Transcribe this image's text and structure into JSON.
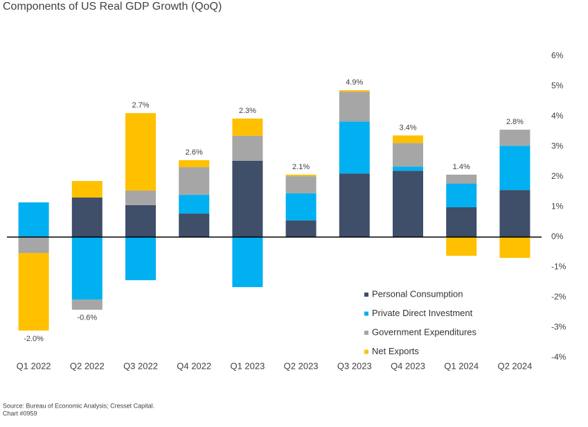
{
  "chart_data": {
    "type": "stacked_bar",
    "title": "Components of US Real GDP Growth (QoQ)",
    "categories": [
      "Q1 2022",
      "Q2 2022",
      "Q3 2022",
      "Q4 2022",
      "Q1 2023",
      "Q2 2023",
      "Q3 2023",
      "Q4 2023",
      "Q1 2024",
      "Q2 2024"
    ],
    "series": [
      {
        "name": "Personal Consumption",
        "color": "#3f4e69",
        "values": [
          0,
          1.31,
          1.06,
          0.78,
          2.53,
          0.55,
          2.11,
          2.2,
          0.99,
          1.56
        ]
      },
      {
        "name": "Private Direct Investment",
        "color": "#00b0f0",
        "values": [
          1.15,
          -2.07,
          -1.43,
          0.62,
          -1.66,
          0.9,
          1.72,
          0.14,
          0.78,
          1.47
        ]
      },
      {
        "name": "Government Expenditures",
        "color": "#a6a6a6",
        "values": [
          -0.53,
          -0.34,
          0.48,
          0.92,
          0.83,
          0.57,
          0.99,
          0.78,
          0.3,
          0.53
        ]
      },
      {
        "name": "Net Exports",
        "color": "#ffc000",
        "values": [
          -2.57,
          0.55,
          2.57,
          0.23,
          0.57,
          0.05,
          0.05,
          0.25,
          -0.62,
          -0.69
        ]
      }
    ],
    "totals": {
      "values": [
        -2.0,
        -0.6,
        2.7,
        2.6,
        2.3,
        2.1,
        4.9,
        3.4,
        1.4,
        2.8
      ],
      "value_labels": [
        "-2.0%",
        "-0.6%",
        "2.7%",
        "2.6%",
        "2.3%",
        "2.1%",
        "4.9%",
        "3.4%",
        "1.4%",
        "2.8%"
      ]
    },
    "ylim": [
      -4,
      6
    ],
    "yticks": [
      {
        "value": -4,
        "label": "-4%"
      },
      {
        "value": -3,
        "label": "-3%"
      },
      {
        "value": -2,
        "label": "-2%"
      },
      {
        "value": -1,
        "label": "-1%"
      },
      {
        "value": 0,
        "label": "0%"
      },
      {
        "value": 1,
        "label": "1%"
      },
      {
        "value": 2,
        "label": "2%"
      },
      {
        "value": 3,
        "label": "3%"
      },
      {
        "value": 4,
        "label": "4%"
      },
      {
        "value": 5,
        "label": "5%"
      },
      {
        "value": 6,
        "label": "6%"
      }
    ],
    "source": "Source: Bureau of Economic Analysis; Cresset Capital.",
    "chart_id": "Chart #0959"
  }
}
